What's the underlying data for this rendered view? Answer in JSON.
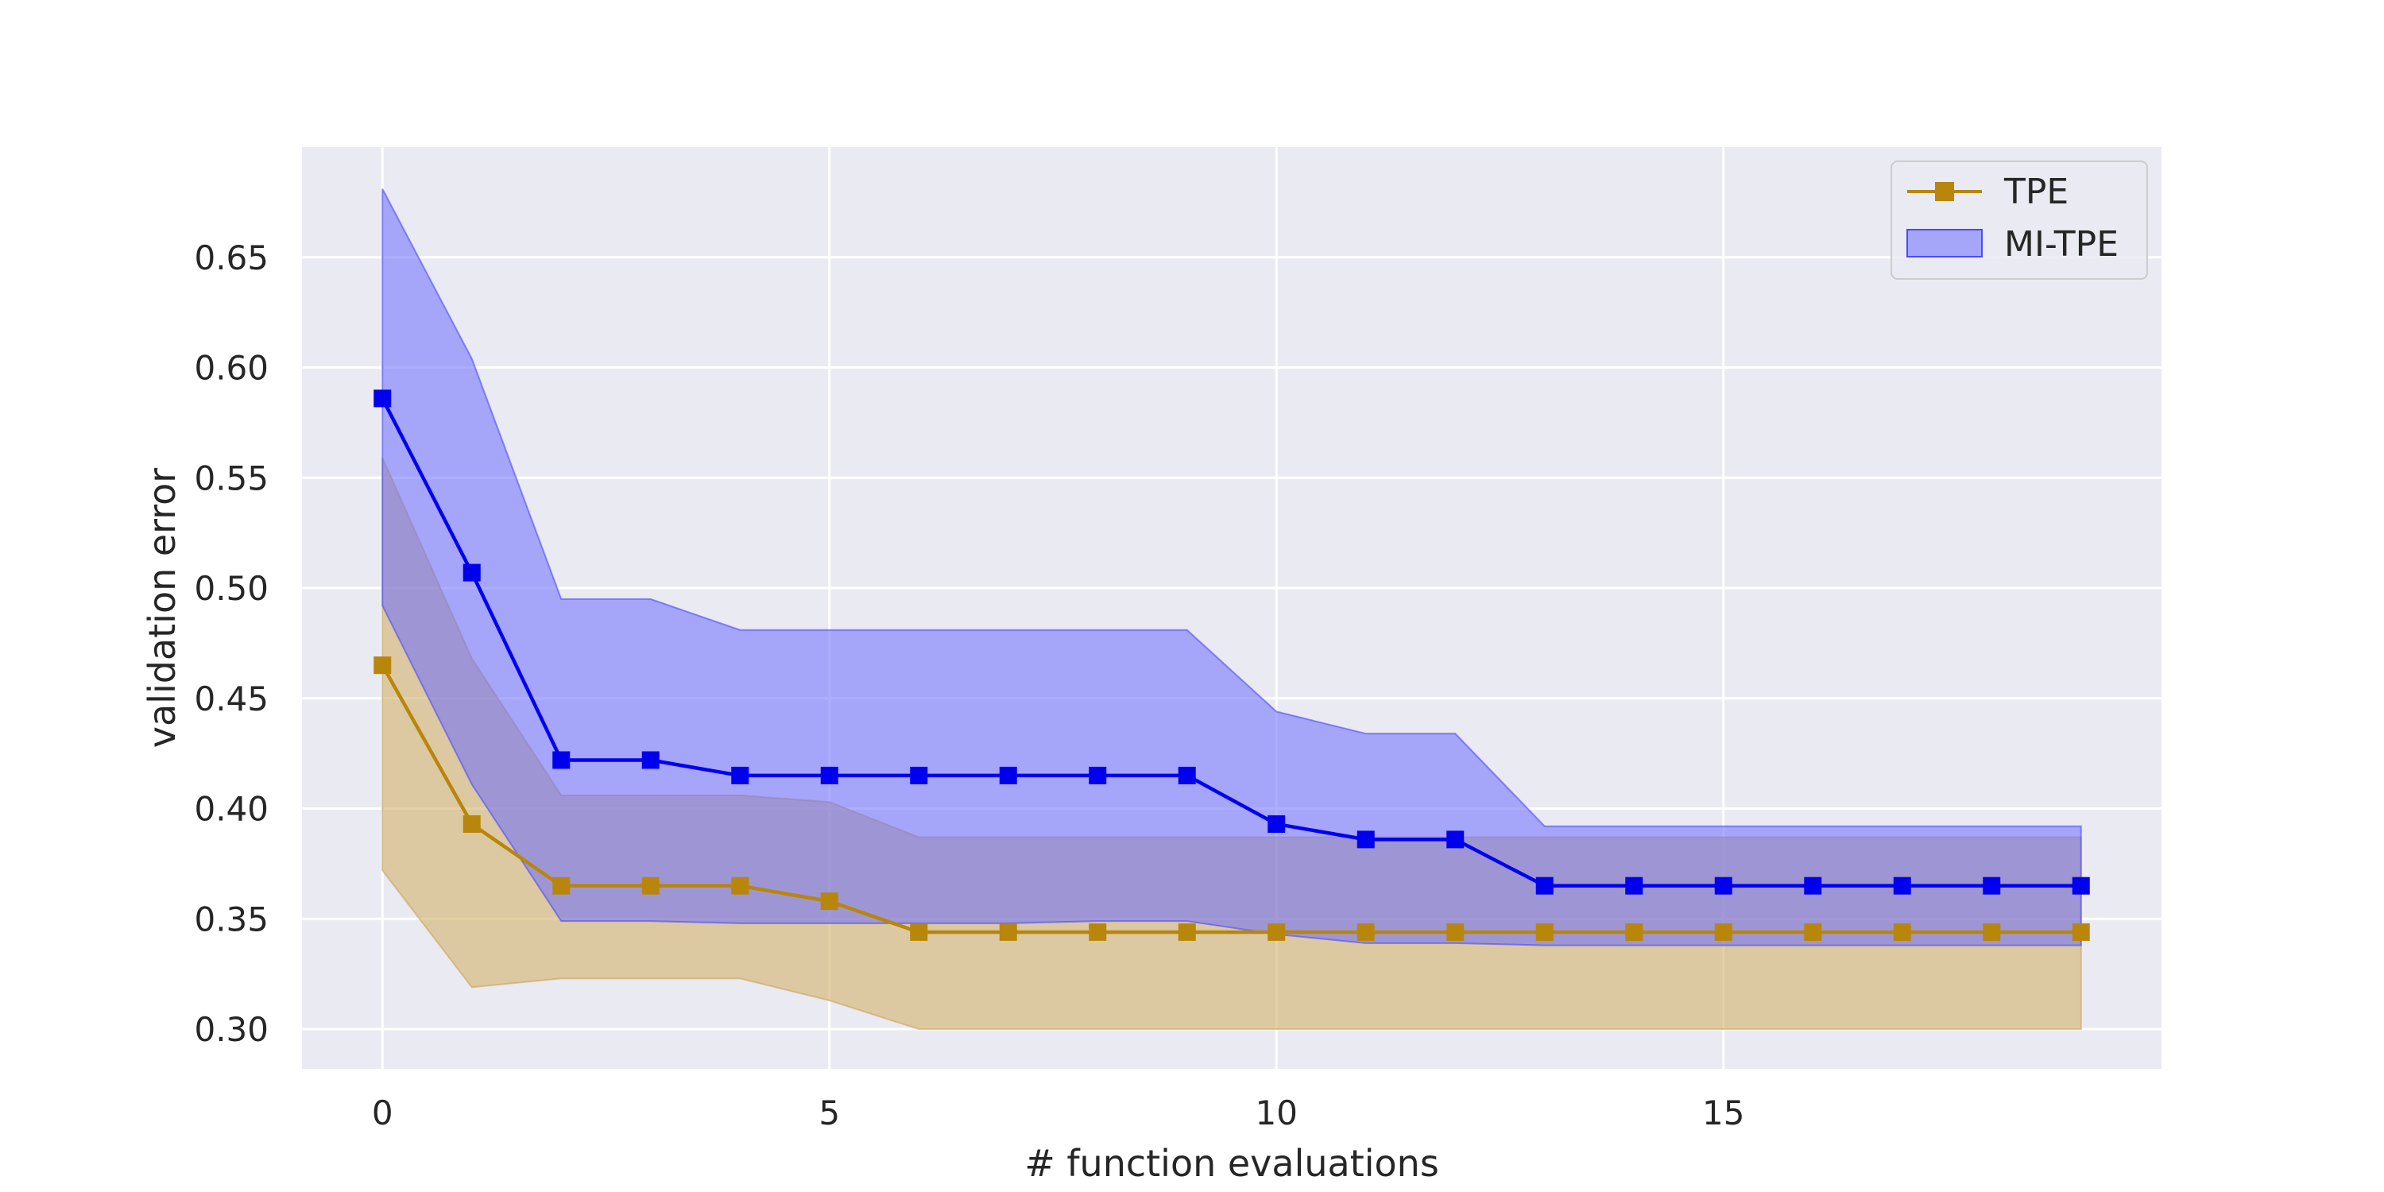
{
  "chart_data": {
    "type": "line",
    "title": "",
    "xlabel": "# function evaluations",
    "ylabel": "validation error",
    "xlim": [
      -0.9,
      19.9
    ],
    "ylim": [
      0.282,
      0.7
    ],
    "xticks": [
      0,
      5,
      10,
      15
    ],
    "yticks": [
      0.3,
      0.35,
      0.4,
      0.45,
      0.5,
      0.55,
      0.6,
      0.65
    ],
    "grid": true,
    "legend_position": "top-right",
    "legend": [
      "TPE",
      "MI-TPE"
    ],
    "x": [
      0,
      1,
      2,
      3,
      4,
      5,
      6,
      7,
      8,
      9,
      10,
      11,
      12,
      13,
      14,
      15,
      16,
      17,
      18,
      19
    ],
    "series": [
      {
        "name": "TPE",
        "color": "#b8860b",
        "marker": "square",
        "values": [
          0.465,
          0.393,
          0.365,
          0.365,
          0.365,
          0.358,
          0.344,
          0.344,
          0.344,
          0.344,
          0.344,
          0.344,
          0.344,
          0.344,
          0.344,
          0.344,
          0.344,
          0.344,
          0.344,
          0.344
        ],
        "band_lower": [
          0.372,
          0.319,
          0.323,
          0.323,
          0.323,
          0.313,
          0.3,
          0.3,
          0.3,
          0.3,
          0.3,
          0.3,
          0.3,
          0.3,
          0.3,
          0.3,
          0.3,
          0.3,
          0.3,
          0.3
        ],
        "band_upper": [
          0.559,
          0.468,
          0.406,
          0.406,
          0.406,
          0.403,
          0.387,
          0.387,
          0.387,
          0.387,
          0.387,
          0.387,
          0.387,
          0.387,
          0.387,
          0.387,
          0.387,
          0.387,
          0.387,
          0.387
        ]
      },
      {
        "name": "MI-TPE",
        "color": "#0000ee",
        "marker": "square",
        "values": [
          0.586,
          0.507,
          0.422,
          0.422,
          0.415,
          0.415,
          0.415,
          0.415,
          0.415,
          0.415,
          0.393,
          0.386,
          0.386,
          0.365,
          0.365,
          0.365,
          0.365,
          0.365,
          0.365,
          0.365
        ],
        "band_lower": [
          0.492,
          0.411,
          0.349,
          0.349,
          0.348,
          0.348,
          0.348,
          0.348,
          0.349,
          0.349,
          0.343,
          0.339,
          0.339,
          0.338,
          0.338,
          0.338,
          0.338,
          0.338,
          0.338,
          0.338
        ],
        "band_upper": [
          0.681,
          0.604,
          0.495,
          0.495,
          0.481,
          0.481,
          0.481,
          0.481,
          0.481,
          0.481,
          0.444,
          0.434,
          0.434,
          0.392,
          0.392,
          0.392,
          0.392,
          0.392,
          0.392,
          0.392
        ]
      }
    ],
    "colors": {
      "plot_background": "#eaeaf2",
      "grid": "#ffffff",
      "tpe_band": "#d2b36b",
      "mitpe_band": "#6b6bff"
    }
  }
}
